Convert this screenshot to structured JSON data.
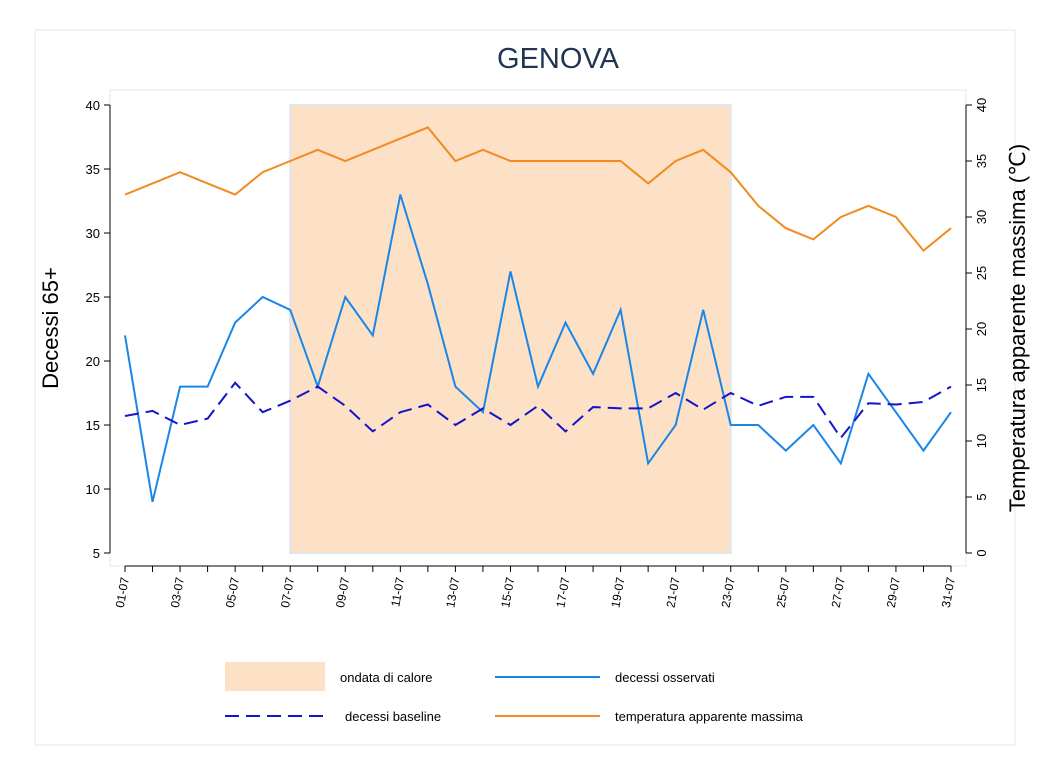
{
  "chart_data": {
    "type": "line",
    "title": "GENOVA",
    "ylabel": "Decessi 65+",
    "y2label": "Temperatura apparente massima (℃)",
    "categories": [
      "01-07",
      null,
      "03-07",
      null,
      "05-07",
      null,
      "07-07",
      null,
      "09-07",
      null,
      "11-07",
      null,
      "13-07",
      null,
      "15-07",
      null,
      "17-07",
      null,
      "19-07",
      null,
      "21-07",
      null,
      "23-07",
      null,
      "25-07",
      null,
      "27-07",
      null,
      "29-07",
      null,
      "31-07"
    ],
    "bands": [
      {
        "name": "ondata di calore",
        "color": "#fde1c7",
        "start": "07-07",
        "end": "23-07"
      }
    ],
    "series": [
      {
        "name": "decessi osservati",
        "color": "#1a86e8",
        "dashed": false,
        "axis": "y",
        "values": [
          22,
          9,
          18,
          18,
          23,
          25,
          24,
          18,
          25,
          22,
          33,
          26,
          18,
          16,
          27,
          18,
          23,
          19,
          24,
          12,
          15,
          24,
          15,
          15,
          13,
          15,
          12,
          19,
          16,
          13,
          16
        ]
      },
      {
        "name": "decessi baseline",
        "color": "#1414c8",
        "dashed": true,
        "axis": "y",
        "values": [
          15.7,
          16.1,
          15,
          15.5,
          18.3,
          16,
          16.9,
          18,
          16.5,
          14.5,
          16,
          16.6,
          15,
          16.3,
          15,
          16.5,
          14.5,
          16.4,
          16.3,
          16.3,
          17.5,
          16.2,
          17.5,
          16.5,
          17.2,
          17.2,
          14,
          16.7,
          16.6,
          16.8,
          18
        ]
      },
      {
        "name": "temperatura apparente massima",
        "color": "#f28a1e",
        "dashed": false,
        "axis": "y2",
        "values": [
          32,
          33,
          34,
          33,
          32,
          34,
          35,
          36,
          35,
          36,
          37,
          38,
          35,
          36,
          35,
          35,
          35,
          35,
          35,
          33,
          35,
          36,
          34,
          31,
          29,
          28,
          30,
          31,
          30,
          27,
          29
        ]
      }
    ],
    "ylim": [
      5,
      40
    ],
    "yticks": [
      5,
      10,
      15,
      20,
      25,
      30,
      35,
      40
    ],
    "y2lim": [
      0,
      40
    ],
    "y2ticks": [
      0,
      5,
      10,
      15,
      20,
      25,
      30,
      35,
      40
    ]
  }
}
